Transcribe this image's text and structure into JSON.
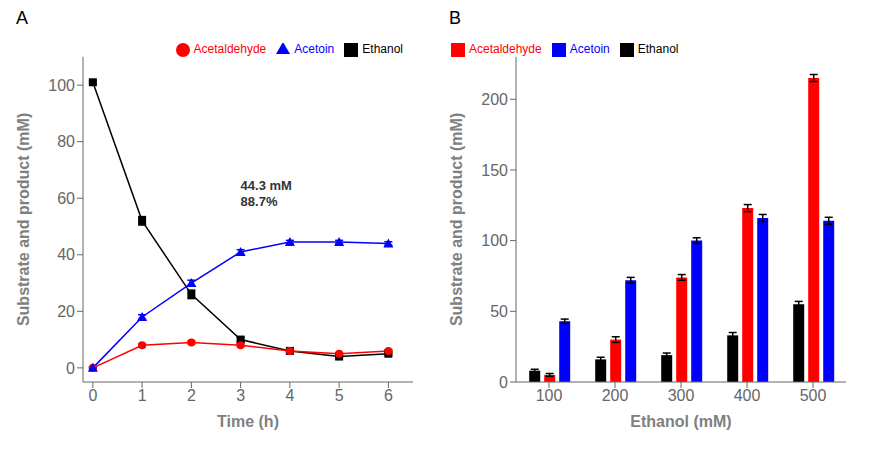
{
  "chart_data": [
    {
      "type": "line",
      "title": "A",
      "x": [
        0,
        1,
        2,
        3,
        4,
        5,
        6
      ],
      "xlim": [
        -0.2,
        6.5
      ],
      "xticks": [
        0,
        1,
        2,
        3,
        4,
        5,
        6
      ],
      "ylim": [
        -5,
        110
      ],
      "yticks": [
        0,
        20,
        40,
        60,
        80,
        100
      ],
      "xlabel": "Time (h)",
      "ylabel": "Substrate and product (mM)",
      "grid": false,
      "legend": "upper right",
      "series": [
        {
          "name": "Ethanol",
          "color": "#000000",
          "marker": "square",
          "values": [
            101,
            52,
            26,
            10,
            6,
            4,
            5
          ],
          "errors": [
            0.5,
            1.5,
            1.5,
            0.8,
            0.5,
            0.4,
            0.4
          ]
        },
        {
          "name": "Acetaldehyde",
          "color": "#ff0000",
          "marker": "circle",
          "values": [
            0,
            8,
            9,
            8,
            6,
            5,
            6
          ],
          "errors": [
            0.3,
            0.5,
            0.5,
            0.5,
            0.4,
            0.4,
            0.4
          ]
        },
        {
          "name": "Acetoin",
          "color": "#0000ff",
          "marker": "triangle",
          "values": [
            0,
            18,
            30,
            41,
            44.5,
            44.5,
            44
          ],
          "errors": [
            0.3,
            0.8,
            1.0,
            0.8,
            0.6,
            0.6,
            0.6
          ]
        }
      ],
      "annotations": [
        {
          "text": "44.3 mM\n88.7%",
          "x": 3.0,
          "y": 56
        }
      ]
    },
    {
      "type": "bar",
      "title": "B",
      "categories": [
        "100",
        "200",
        "300",
        "400",
        "500"
      ],
      "ylim": [
        0,
        230
      ],
      "yticks": [
        0,
        50,
        100,
        150,
        200
      ],
      "xlabel": "Ethanol (mM)",
      "ylabel": "Substrate and product (mM)",
      "grid": false,
      "legend": "upper left",
      "series": [
        {
          "name": "Ethanol",
          "color": "#000000",
          "values": [
            8,
            16,
            19,
            33,
            55
          ],
          "errors": [
            1.0,
            1.5,
            1.5,
            2.0,
            2.0
          ]
        },
        {
          "name": "Acetaldehyde",
          "color": "#ff0000",
          "values": [
            5,
            30,
            74,
            123,
            215
          ],
          "errors": [
            1.0,
            2.0,
            2.0,
            2.5,
            2.5
          ]
        },
        {
          "name": "Acetoin",
          "color": "#0000ff",
          "values": [
            43,
            72,
            100,
            116,
            114
          ],
          "errors": [
            1.5,
            2.0,
            2.0,
            2.5,
            2.5
          ]
        }
      ]
    }
  ]
}
